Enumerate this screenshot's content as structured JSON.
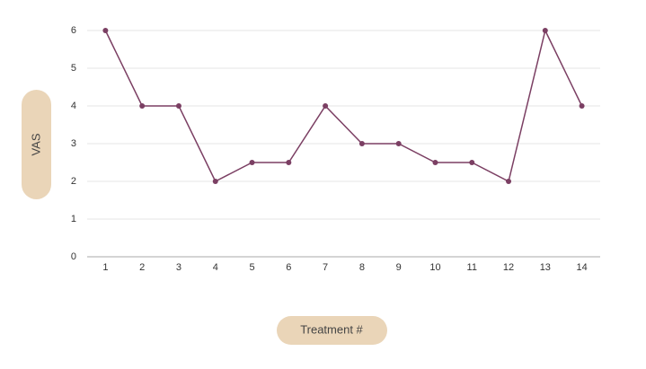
{
  "chart_data": {
    "type": "line",
    "y_label": "VAS",
    "x_label": "Treatment #",
    "categories": [
      "1",
      "2",
      "3",
      "4",
      "5",
      "6",
      "7",
      "8",
      "9",
      "10",
      "11",
      "12",
      "13",
      "14"
    ],
    "values": [
      6,
      4,
      4,
      2,
      2.5,
      2.5,
      4,
      3,
      3,
      2.5,
      2.5,
      2,
      6,
      4
    ],
    "color": "#7b3f63",
    "ylim": [
      0,
      6
    ],
    "yticks": [
      0,
      1,
      2,
      3,
      4,
      5,
      6
    ],
    "grid": true
  }
}
